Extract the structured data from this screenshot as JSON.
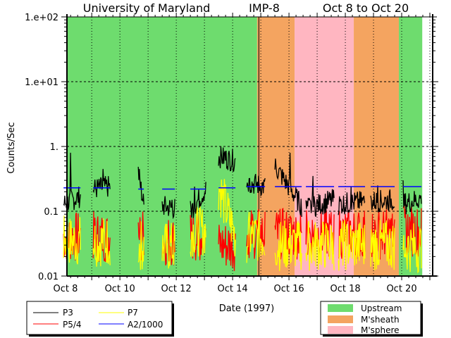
{
  "chart_data": {
    "type": "line",
    "title_parts": [
      "University of Maryland",
      "IMP-8",
      "Oct 8 to Oct 20"
    ],
    "xlabel": "Date (1997)",
    "ylabel": "Counts/Sec",
    "yscale": "log",
    "ylim": [
      0.01,
      100
    ],
    "ytick_values": [
      100,
      10,
      1,
      0.1,
      0.01
    ],
    "ytick_labels": [
      "1.e+02",
      "1.e+01",
      "1.",
      "0.1",
      "0.01"
    ],
    "x_units": "days since Oct 8 00:00",
    "xlim": [
      0.12,
      13.1
    ],
    "xtick_values": [
      0,
      2,
      4,
      6,
      8,
      10,
      12
    ],
    "xtick_labels": [
      "Oct 8",
      "Oct 10",
      "Oct 12",
      "Oct 14",
      "Oct 16",
      "Oct 18",
      "Oct 20"
    ],
    "grid": true,
    "regions": [
      {
        "name": "Upstream",
        "start": 0.12,
        "end": 6.87,
        "color": "#6edc6e"
      },
      {
        "name": "M'sheath",
        "start": 6.87,
        "end": 8.2,
        "color": "#f4a460"
      },
      {
        "name": "M'sphere",
        "start": 8.2,
        "end": 10.3,
        "color": "#ffb6c1"
      },
      {
        "name": "M'sheath",
        "start": 10.3,
        "end": 11.9,
        "color": "#f4a460"
      },
      {
        "name": "Upstream",
        "start": 11.9,
        "end": 12.73,
        "color": "#6edc6e"
      }
    ],
    "region_legend": [
      {
        "label": "Upstream",
        "color": "#6edc6e"
      },
      {
        "label": "M'sheath",
        "color": "#f4a460"
      },
      {
        "label": "M'sphere",
        "color": "#ffb6c1"
      }
    ],
    "series": [
      {
        "name": "P3",
        "color": "#000000"
      },
      {
        "name": "P5/4",
        "color": "#ff0000"
      },
      {
        "name": "P7",
        "color": "#ffff00"
      },
      {
        "name": "A2/1000",
        "color": "#0000ff"
      }
    ],
    "segments": [
      {
        "start": 0.0,
        "end": 0.6,
        "P3": [
          0.13,
          0.17
        ],
        "P3_peak": 0.8,
        "P5/4": 0.04,
        "P7": 0.035,
        "A2/1000": 0.23
      },
      {
        "start": 1.05,
        "end": 1.65,
        "P3": [
          0.22,
          0.24
        ],
        "P3_peak": 0.45,
        "P5/4": 0.04,
        "P7": 0.035,
        "A2/1000": 0.23
      },
      {
        "start": 2.65,
        "end": 2.85,
        "P3": [
          0.4,
          0.12
        ],
        "P3_peak": 0.45,
        "P5/4": 0.04,
        "P7": 0.03,
        "A2/1000": 0.22
      },
      {
        "start": 3.5,
        "end": 3.95,
        "P3": [
          0.12,
          0.11
        ],
        "P3_peak": 0.15,
        "P5/4": 0.035,
        "P7": 0.028,
        "A2/1000": 0.22
      },
      {
        "start": 4.5,
        "end": 5.05,
        "P3": [
          0.1,
          0.22
        ],
        "P3_peak": 0.24,
        "P5/4": 0.04,
        "P7": 0.05,
        "A2/1000": 0.22
      },
      {
        "start": 5.5,
        "end": 6.1,
        "P3": [
          0.7,
          0.6
        ],
        "P3_peak": 0.85,
        "P5/4": 0.03,
        "P7": [
          0.25,
          0.04
        ],
        "A2/1000": 0.23
      },
      {
        "start": 6.5,
        "end": 7.15,
        "P3": [
          0.28,
          0.24
        ],
        "P3_peak": 0.32,
        "P5/4": 0.045,
        "P7": 0.04,
        "A2/1000": 0.24
      },
      {
        "start": 7.5,
        "end": 8.45,
        "P3": [
          0.5,
          0.12
        ],
        "P3_peak": 0.8,
        "P5/4": 0.045,
        "P7": 0.03,
        "A2/1000": 0.24
      },
      {
        "start": 8.6,
        "end": 9.6,
        "P3": [
          0.11,
          0.15
        ],
        "P3_peak": 0.35,
        "P5/4": 0.045,
        "P7": 0.03,
        "A2/1000": 0.24
      },
      {
        "start": 9.75,
        "end": 10.7,
        "P3": [
          0.13,
          0.14
        ],
        "P3_peak": 0.24,
        "P5/4": 0.045,
        "P7": 0.03,
        "A2/1000": 0.24
      },
      {
        "start": 10.9,
        "end": 11.75,
        "P3": [
          0.14,
          0.15
        ],
        "P3_peak": 0.25,
        "P5/4": 0.045,
        "P7": 0.03,
        "A2/1000": 0.24
      },
      {
        "start": 12.05,
        "end": 12.7,
        "P3": [
          0.13,
          0.16
        ],
        "P3_peak": 0.3,
        "P5/4": 0.05,
        "P7": 0.028,
        "A2/1000": 0.24
      }
    ]
  }
}
